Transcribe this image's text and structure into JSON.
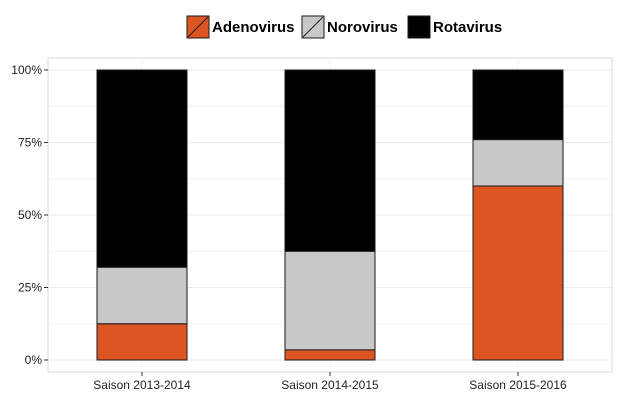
{
  "chart_data": {
    "type": "bar",
    "stacked": true,
    "categories": [
      "Saison 2013-2014",
      "Saison 2014-2015",
      "Saison 2015-2016"
    ],
    "series": [
      {
        "name": "Adenovirus",
        "color": "#DD5522",
        "values": [
          12.5,
          3.5,
          60
        ]
      },
      {
        "name": "Norovirus",
        "color": "#C8C8C8",
        "values": [
          19.5,
          34,
          16
        ]
      },
      {
        "name": "Rotavirus",
        "color": "#000000",
        "values": [
          68,
          62.5,
          24
        ]
      }
    ],
    "ylim": [
      0,
      100
    ],
    "yticks": [
      "0%",
      "25%",
      "50%",
      "75%",
      "100%"
    ],
    "ytick_values": [
      0,
      25,
      50,
      75,
      100
    ],
    "grid": true,
    "legend_position": "top"
  }
}
